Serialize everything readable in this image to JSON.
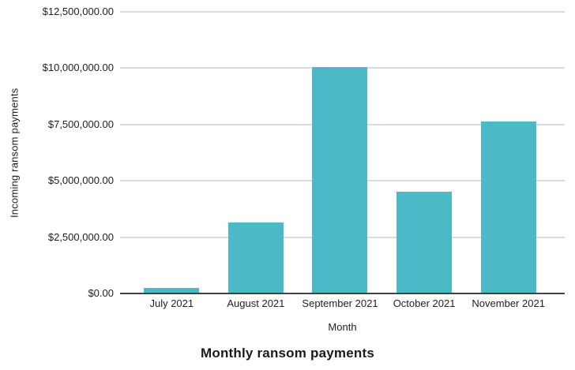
{
  "chart_data": {
    "type": "bar",
    "title": "Monthly ransom payments",
    "xlabel": "Month",
    "ylabel": "Incoming ransom payments",
    "categories": [
      "July 2021",
      "August 2021",
      "September 2021",
      "October 2021",
      "November 2021"
    ],
    "values": [
      250000,
      3150000,
      10050000,
      4500000,
      7650000
    ],
    "ylim": [
      0,
      12500000
    ],
    "y_tick_interval": 2500000,
    "y_tick_labels": [
      "$12,500,000.00",
      "$10,000,000.00",
      "$7,500,000.00",
      "$5,000,000.00",
      "$2,500,000.00",
      "$0.00"
    ],
    "grid": true,
    "legend": false,
    "colors": {
      "bar": "#4bb9c6",
      "gridline": "#dbdbdb",
      "axis_line": "#424242",
      "text": "#212121",
      "background": "#ffffff"
    }
  }
}
